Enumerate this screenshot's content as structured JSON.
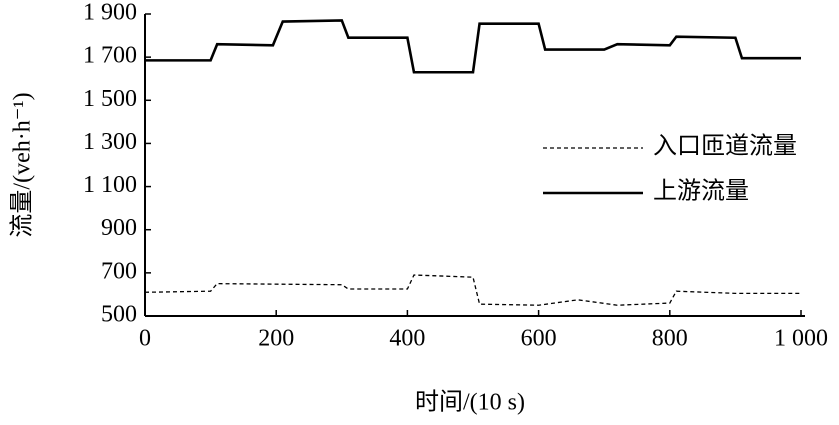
{
  "chart_data": {
    "type": "line",
    "x_label": "时间/(10 s)",
    "y_label": "流量/(veh·h⁻¹)",
    "xlim": [
      0,
      1000
    ],
    "xticks": [
      0,
      200,
      400,
      600,
      800,
      {
        "value": 1000,
        "label": "1 000"
      }
    ],
    "ylim": [
      500,
      1900
    ],
    "yticks": [
      500,
      700,
      900,
      {
        "value": 1100,
        "label": "1 100"
      },
      {
        "value": 1300,
        "label": "1 300"
      },
      {
        "value": 1500,
        "label": "1 500"
      },
      {
        "value": 1700,
        "label": "1 700"
      },
      {
        "value": 1900,
        "label": "1 900"
      }
    ],
    "series": [
      {
        "name": "入口匝道流量",
        "color": "#000000",
        "dashed": true,
        "x": [
          0,
          100,
          110,
          300,
          310,
          400,
          410,
          500,
          510,
          600,
          660,
          720,
          800,
          810,
          900,
          1000
        ],
        "values": [
          610,
          615,
          650,
          645,
          625,
          625,
          690,
          680,
          555,
          550,
          575,
          550,
          560,
          615,
          605,
          605
        ]
      },
      {
        "name": "上游流量",
        "color": "#000000",
        "dashed": false,
        "x": [
          0,
          100,
          110,
          195,
          210,
          300,
          310,
          400,
          410,
          500,
          510,
          600,
          610,
          700,
          720,
          800,
          810,
          900,
          910,
          1000
        ],
        "values": [
          1685,
          1685,
          1760,
          1755,
          1865,
          1870,
          1790,
          1790,
          1630,
          1630,
          1855,
          1855,
          1735,
          1735,
          1760,
          1755,
          1795,
          1790,
          1695,
          1695
        ]
      }
    ]
  }
}
